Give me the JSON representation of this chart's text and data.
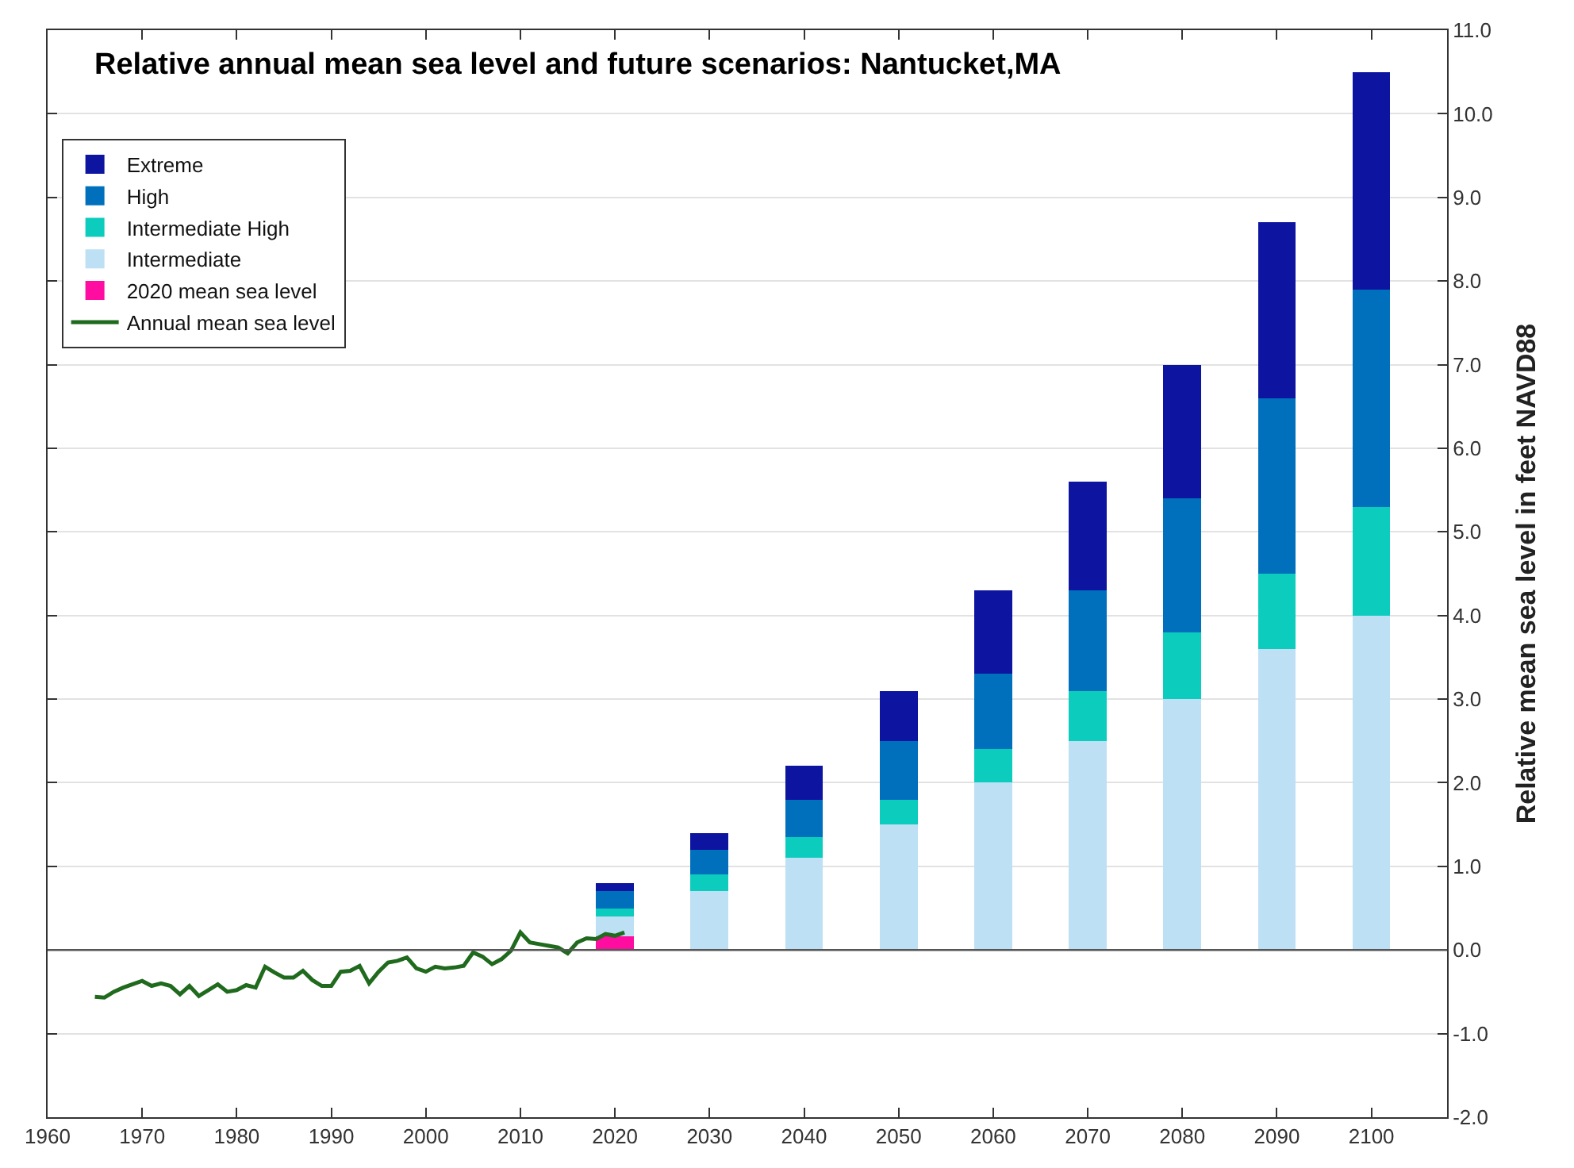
{
  "chart_data": {
    "type": "bar",
    "title": "Relative annual mean sea level and future scenarios: Nantucket,MA",
    "ylabel": "Relative mean sea level in feet NAVD88",
    "x": [
      2020,
      2030,
      2040,
      2050,
      2060,
      2070,
      2080,
      2090,
      2100
    ],
    "stacked": true,
    "series": [
      {
        "name": "2020 mean sea level",
        "color": "#ff0ca0",
        "values": [
          0.16,
          null,
          null,
          null,
          null,
          null,
          null,
          null,
          null
        ]
      },
      {
        "name": "Intermediate",
        "color": "#bde0f4",
        "values": [
          0.24,
          0.7,
          1.1,
          1.5,
          2.0,
          2.5,
          3.0,
          3.6,
          4.0
        ]
      },
      {
        "name": "Intermediate High",
        "color": "#0ccdbd",
        "values": [
          0.1,
          0.2,
          0.25,
          0.3,
          0.4,
          0.6,
          0.8,
          0.9,
          1.3
        ]
      },
      {
        "name": "High",
        "color": "#0070bd",
        "values": [
          0.2,
          0.3,
          0.45,
          0.7,
          0.9,
          1.2,
          1.6,
          2.1,
          2.6
        ]
      },
      {
        "name": "Extreme",
        "color": "#0d14a0",
        "values": [
          0.1,
          0.2,
          0.4,
          0.6,
          1.0,
          1.3,
          1.6,
          2.1,
          2.6
        ]
      },
      {
        "name": "Annual mean sea level",
        "type": "line",
        "color": "#206a1e",
        "x": [
          1965,
          1966,
          1967,
          1968,
          1969,
          1970,
          1971,
          1972,
          1973,
          1974,
          1975,
          1976,
          1977,
          1978,
          1979,
          1980,
          1981,
          1982,
          1983,
          1984,
          1985,
          1986,
          1987,
          1988,
          1989,
          1990,
          1991,
          1992,
          1993,
          1994,
          1995,
          1996,
          1997,
          1998,
          1999,
          2000,
          2001,
          2002,
          2003,
          2004,
          2005,
          2006,
          2007,
          2008,
          2009,
          2010,
          2011,
          2012,
          2013,
          2014,
          2015,
          2016,
          2017,
          2018,
          2019,
          2020,
          2021
        ],
        "values": [
          -0.56,
          -0.57,
          -0.5,
          -0.45,
          -0.41,
          -0.37,
          -0.43,
          -0.4,
          -0.43,
          -0.53,
          -0.43,
          -0.55,
          -0.48,
          -0.41,
          -0.5,
          -0.48,
          -0.42,
          -0.45,
          -0.2,
          -0.27,
          -0.33,
          -0.33,
          -0.25,
          -0.36,
          -0.43,
          -0.43,
          -0.26,
          -0.25,
          -0.19,
          -0.4,
          -0.26,
          -0.15,
          -0.13,
          -0.09,
          -0.22,
          -0.26,
          -0.2,
          -0.22,
          -0.21,
          -0.19,
          -0.03,
          -0.08,
          -0.17,
          -0.11,
          -0.01,
          0.21,
          0.09,
          0.07,
          0.05,
          0.03,
          -0.04,
          0.09,
          0.14,
          0.13,
          0.19,
          0.17,
          0.21
        ]
      }
    ],
    "xlim": [
      1960,
      2108
    ],
    "xticks": [
      1960,
      1970,
      1980,
      1990,
      2000,
      2010,
      2020,
      2030,
      2040,
      2050,
      2060,
      2070,
      2080,
      2090,
      2100
    ],
    "ylim": [
      -2,
      11
    ],
    "yticks": [
      {
        "value": -2,
        "label": "-2.0"
      },
      {
        "value": -1,
        "label": "-1.0"
      },
      {
        "value": 0,
        "label": "0.0"
      },
      {
        "value": 1,
        "label": "1.0"
      },
      {
        "value": 2,
        "label": "2.0"
      },
      {
        "value": 3,
        "label": "3.0"
      },
      {
        "value": 4,
        "label": "4.0"
      },
      {
        "value": 5,
        "label": "5.0"
      },
      {
        "value": 6,
        "label": "6.0"
      },
      {
        "value": 7,
        "label": "7.0"
      },
      {
        "value": 8,
        "label": "8.0"
      },
      {
        "value": 9,
        "label": "9.0"
      },
      {
        "value": 10,
        "label": "10.0"
      },
      {
        "value": 11,
        "label": "11.0"
      }
    ],
    "ref_lines": [
      {
        "axis": "y",
        "value": 0,
        "color": "#555555"
      }
    ],
    "grid": "y",
    "legend": "top left",
    "marker": "none",
    "line_style": "solid"
  }
}
